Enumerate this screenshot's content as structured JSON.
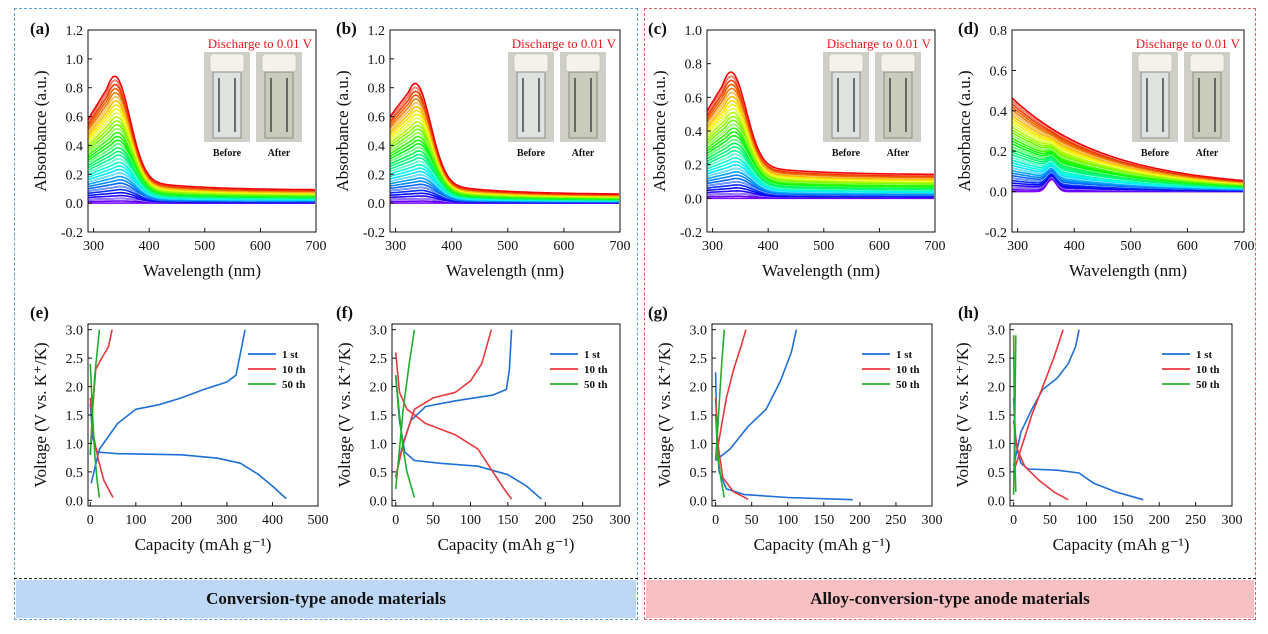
{
  "banners": {
    "left": "Conversion-type anode materials",
    "right": "Alloy-conversion-type anode materials"
  },
  "colors": {
    "blue_frame": "#5aa0de",
    "red_frame": "#e0606a",
    "blue_banner": "#bcd8f6",
    "red_banner": "#f8c0c2",
    "series_1st": "#1f6fd6",
    "series_10th": "#e8383d",
    "series_50th": "#1fae2e",
    "annotation": "#e8161c"
  },
  "photo_labels": {
    "before": "Before",
    "after": "After"
  },
  "chart_data": [
    {
      "panel": "(a)",
      "type": "line",
      "xlabel": "Wavelength (nm)",
      "ylabel": "Absorbance (a.u.)",
      "xlim": [
        290,
        700
      ],
      "ylim": [
        -0.2,
        1.2
      ],
      "xticks": [
        300,
        400,
        500,
        600,
        700
      ],
      "yticks": [
        -0.2,
        0.0,
        0.2,
        0.4,
        0.6,
        0.8,
        1.0,
        1.2
      ],
      "annotation": "Discharge to 0.01 V",
      "peak_wavelength": 338,
      "max_absorbance": 0.88,
      "end_absorbance": 0.09,
      "start_absorbance": 0.58,
      "n_spectra": 36
    },
    {
      "panel": "(b)",
      "type": "line",
      "xlabel": "Wavelength (nm)",
      "ylabel": "Absorbance (a.u.)",
      "xlim": [
        290,
        700
      ],
      "ylim": [
        -0.2,
        1.2
      ],
      "xticks": [
        300,
        400,
        500,
        600,
        700
      ],
      "yticks": [
        -0.2,
        0.0,
        0.2,
        0.4,
        0.6,
        0.8,
        1.0,
        1.2
      ],
      "annotation": "Discharge to 0.01 V",
      "peak_wavelength": 335,
      "max_absorbance": 0.83,
      "end_absorbance": 0.06,
      "start_absorbance": 0.6,
      "n_spectra": 36
    },
    {
      "panel": "(c)",
      "type": "line",
      "xlabel": "Wavelength (nm)",
      "ylabel": "Absorbance (a.u.)",
      "xlim": [
        290,
        700
      ],
      "ylim": [
        -0.2,
        1.0
      ],
      "xticks": [
        300,
        400,
        500,
        600,
        700
      ],
      "yticks": [
        -0.2,
        0.0,
        0.2,
        0.4,
        0.6,
        0.8,
        1.0
      ],
      "annotation": "Discharge to 0.01 V",
      "peak_wavelength": 333,
      "max_absorbance": 0.75,
      "end_absorbance": 0.14,
      "start_absorbance": 0.52,
      "n_spectra": 36
    },
    {
      "panel": "(d)",
      "type": "line",
      "xlabel": "Wavelength (nm)",
      "ylabel": "Absorbance (a.u.)",
      "xlim": [
        290,
        700
      ],
      "ylim": [
        -0.2,
        0.8
      ],
      "xticks": [
        300,
        400,
        500,
        600,
        700
      ],
      "yticks": [
        -0.2,
        0.0,
        0.2,
        0.4,
        0.6,
        0.8
      ],
      "annotation": "Discharge to 0.01 V",
      "peak_wavelength": 315,
      "max_absorbance": 0.45,
      "end_absorbance": 0.07,
      "start_absorbance": 0.45,
      "n_spectra": 36
    },
    {
      "panel": "(e)",
      "type": "line",
      "xlabel": "Capacity (mAh g⁻¹)",
      "ylabel": "Voltage (V vs. K⁺/K)",
      "xlim": [
        -5,
        500
      ],
      "ylim": [
        -0.1,
        3.1
      ],
      "xticks": [
        0,
        100,
        200,
        300,
        400,
        500
      ],
      "yticks": [
        0.0,
        0.5,
        1.0,
        1.5,
        2.0,
        2.5,
        3.0
      ],
      "legend": [
        "1 st",
        "10 th",
        "50 th"
      ],
      "series": [
        {
          "name": "1 st",
          "discharge": [
            [
              0,
              1.7
            ],
            [
              5,
              1.1
            ],
            [
              15,
              0.85
            ],
            [
              60,
              0.82
            ],
            [
              200,
              0.8
            ],
            [
              280,
              0.74
            ],
            [
              330,
              0.65
            ],
            [
              370,
              0.45
            ],
            [
              400,
              0.25
            ],
            [
              430,
              0.03
            ]
          ],
          "charge": [
            [
              2,
              0.3
            ],
            [
              20,
              0.9
            ],
            [
              60,
              1.35
            ],
            [
              100,
              1.6
            ],
            [
              150,
              1.68
            ],
            [
              200,
              1.8
            ],
            [
              250,
              1.95
            ],
            [
              300,
              2.08
            ],
            [
              320,
              2.2
            ],
            [
              330,
              2.6
            ],
            [
              340,
              3.0
            ]
          ]
        },
        {
          "name": "10 th",
          "discharge": [
            [
              0,
              1.8
            ],
            [
              8,
              1.1
            ],
            [
              18,
              0.7
            ],
            [
              30,
              0.35
            ],
            [
              50,
              0.05
            ]
          ],
          "charge": [
            [
              0,
              0.8
            ],
            [
              5,
              1.6
            ],
            [
              12,
              2.3
            ],
            [
              25,
              2.5
            ],
            [
              40,
              2.7
            ],
            [
              48,
              3.0
            ]
          ]
        },
        {
          "name": "50 th",
          "discharge": [
            [
              0,
              2.4
            ],
            [
              5,
              1.5
            ],
            [
              10,
              0.8
            ],
            [
              15,
              0.35
            ],
            [
              20,
              0.05
            ]
          ],
          "charge": [
            [
              0,
              0.8
            ],
            [
              5,
              1.6
            ],
            [
              10,
              2.2
            ],
            [
              15,
              2.6
            ],
            [
              20,
              3.0
            ]
          ]
        }
      ]
    },
    {
      "panel": "(f)",
      "type": "line",
      "xlabel": "Capacity (mAh g⁻¹)",
      "ylabel": "Voltage (V vs. K⁺/K)",
      "xlim": [
        -5,
        300
      ],
      "ylim": [
        -0.1,
        3.1
      ],
      "xticks": [
        0,
        50,
        100,
        150,
        200,
        250,
        300
      ],
      "yticks": [
        0.0,
        0.5,
        1.0,
        1.5,
        2.0,
        2.5,
        3.0
      ],
      "legend": [
        "1 st",
        "10 th",
        "50 th"
      ],
      "series": [
        {
          "name": "1 st",
          "discharge": [
            [
              0,
              2.2
            ],
            [
              5,
              1.4
            ],
            [
              12,
              0.85
            ],
            [
              25,
              0.7
            ],
            [
              60,
              0.65
            ],
            [
              110,
              0.6
            ],
            [
              150,
              0.45
            ],
            [
              175,
              0.25
            ],
            [
              195,
              0.02
            ]
          ],
          "charge": [
            [
              0,
              0.4
            ],
            [
              8,
              0.9
            ],
            [
              20,
              1.4
            ],
            [
              40,
              1.65
            ],
            [
              80,
              1.75
            ],
            [
              130,
              1.85
            ],
            [
              148,
              1.95
            ],
            [
              152,
              2.3
            ],
            [
              155,
              3.0
            ]
          ]
        },
        {
          "name": "10 th",
          "discharge": [
            [
              0,
              2.6
            ],
            [
              5,
              1.9
            ],
            [
              15,
              1.6
            ],
            [
              40,
              1.35
            ],
            [
              80,
              1.15
            ],
            [
              110,
              0.9
            ],
            [
              130,
              0.5
            ],
            [
              145,
              0.2
            ],
            [
              155,
              0.02
            ]
          ],
          "charge": [
            [
              0,
              0.4
            ],
            [
              10,
              1.0
            ],
            [
              25,
              1.6
            ],
            [
              50,
              1.8
            ],
            [
              80,
              1.9
            ],
            [
              100,
              2.1
            ],
            [
              115,
              2.4
            ],
            [
              128,
              3.0
            ]
          ]
        },
        {
          "name": "50 th",
          "discharge": [
            [
              0,
              2.2
            ],
            [
              5,
              1.5
            ],
            [
              10,
              0.9
            ],
            [
              15,
              0.5
            ],
            [
              25,
              0.05
            ]
          ],
          "charge": [
            [
              0,
              0.2
            ],
            [
              5,
              0.9
            ],
            [
              10,
              1.6
            ],
            [
              18,
              2.4
            ],
            [
              25,
              3.0
            ]
          ]
        }
      ]
    },
    {
      "panel": "(g)",
      "type": "line",
      "xlabel": "Capacity (mAh g⁻¹)",
      "ylabel": "Voltage (V vs. K⁺/K)",
      "xlim": [
        -5,
        300
      ],
      "ylim": [
        -0.1,
        3.1
      ],
      "xticks": [
        0,
        50,
        100,
        150,
        200,
        250,
        300
      ],
      "yticks": [
        0.0,
        0.5,
        1.0,
        1.5,
        2.0,
        2.5,
        3.0
      ],
      "legend": [
        "1 st",
        "10 th",
        "50 th"
      ],
      "series": [
        {
          "name": "1 st",
          "discharge": [
            [
              0,
              2.25
            ],
            [
              2,
              1.0
            ],
            [
              5,
              0.5
            ],
            [
              15,
              0.2
            ],
            [
              40,
              0.1
            ],
            [
              100,
              0.05
            ],
            [
              190,
              0.01
            ]
          ],
          "charge": [
            [
              0,
              0.7
            ],
            [
              20,
              0.9
            ],
            [
              45,
              1.3
            ],
            [
              70,
              1.6
            ],
            [
              90,
              2.1
            ],
            [
              105,
              2.6
            ],
            [
              112,
              3.0
            ]
          ]
        },
        {
          "name": "10 th",
          "discharge": [
            [
              0,
              1.8
            ],
            [
              3,
              1.0
            ],
            [
              10,
              0.4
            ],
            [
              25,
              0.15
            ],
            [
              45,
              0.02
            ]
          ],
          "charge": [
            [
              0,
              0.7
            ],
            [
              8,
              1.3
            ],
            [
              15,
              1.8
            ],
            [
              25,
              2.3
            ],
            [
              35,
              2.7
            ],
            [
              42,
              3.0
            ]
          ]
        },
        {
          "name": "50 th",
          "discharge": [
            [
              0,
              1.5
            ],
            [
              3,
              0.8
            ],
            [
              7,
              0.4
            ],
            [
              12,
              0.05
            ]
          ],
          "charge": [
            [
              0,
              0.7
            ],
            [
              3,
              1.3
            ],
            [
              6,
              1.9
            ],
            [
              9,
              2.5
            ],
            [
              12,
              3.0
            ]
          ]
        }
      ]
    },
    {
      "panel": "(h)",
      "type": "line",
      "xlabel": "Capacity (mAh g⁻¹)",
      "ylabel": "Voltage (V vs. K⁺/K)",
      "xlim": [
        -5,
        300
      ],
      "ylim": [
        -0.1,
        3.1
      ],
      "xticks": [
        0,
        50,
        100,
        150,
        200,
        250,
        300
      ],
      "yticks": [
        0.0,
        0.5,
        1.0,
        1.5,
        2.0,
        2.5,
        3.0
      ],
      "legend": [
        "1 st",
        "10 th",
        "50 th"
      ],
      "series": [
        {
          "name": "1 st",
          "discharge": [
            [
              0,
              1.8
            ],
            [
              3,
              1.0
            ],
            [
              10,
              0.65
            ],
            [
              20,
              0.55
            ],
            [
              60,
              0.53
            ],
            [
              90,
              0.48
            ],
            [
              110,
              0.3
            ],
            [
              140,
              0.15
            ],
            [
              178,
              0.01
            ]
          ],
          "charge": [
            [
              0,
              0.6
            ],
            [
              10,
              1.2
            ],
            [
              25,
              1.6
            ],
            [
              40,
              1.95
            ],
            [
              60,
              2.15
            ],
            [
              75,
              2.4
            ],
            [
              85,
              2.7
            ],
            [
              90,
              3.0
            ]
          ]
        },
        {
          "name": "10 th",
          "discharge": [
            [
              0,
              1.4
            ],
            [
              5,
              0.9
            ],
            [
              15,
              0.6
            ],
            [
              35,
              0.35
            ],
            [
              55,
              0.15
            ],
            [
              75,
              0.01
            ]
          ],
          "charge": [
            [
              0,
              0.5
            ],
            [
              10,
              0.9
            ],
            [
              25,
              1.5
            ],
            [
              40,
              2.0
            ],
            [
              55,
              2.5
            ],
            [
              68,
              3.0
            ]
          ]
        },
        {
          "name": "50 th",
          "discharge": [
            [
              0,
              2.9
            ],
            [
              1,
              1.5
            ],
            [
              2,
              0.6
            ],
            [
              3,
              0.15
            ]
          ],
          "charge": [
            [
              0,
              0.1
            ],
            [
              1,
              0.9
            ],
            [
              2,
              1.8
            ],
            [
              3,
              2.9
            ]
          ]
        }
      ]
    }
  ]
}
